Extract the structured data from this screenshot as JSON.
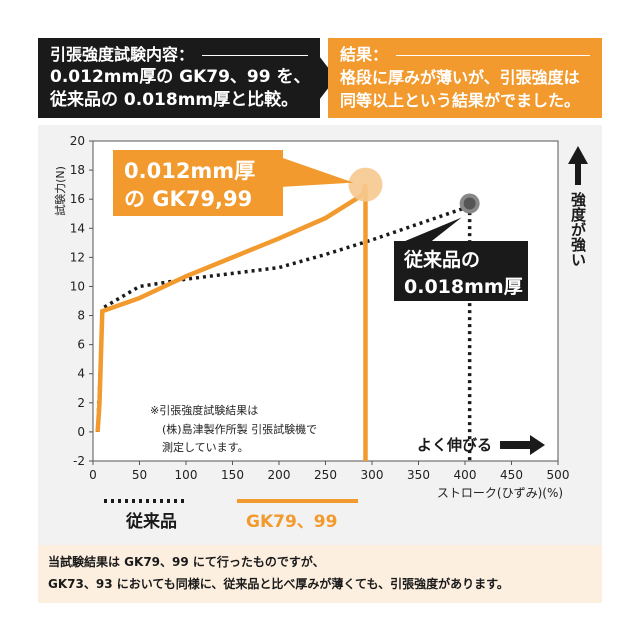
{
  "header": {
    "left_title": "引張強度試験内容：",
    "left_line1": "0.012mm厚の GK79、99 を、",
    "left_line2": "従来品の 0.018mm厚と比較。",
    "right_title": "結果：",
    "right_line1": "格段に厚みが薄いが、引張強度は",
    "right_line2": "同等以上という結果がでました。"
  },
  "chart_data": {
    "type": "line",
    "ylabel": "試験力(N)",
    "xlabel": "ストローク(ひずみ)(%)",
    "xlim": [
      0,
      500
    ],
    "ylim": [
      -2,
      20
    ],
    "xticks": [
      "0",
      "50",
      "100",
      "150",
      "200",
      "250",
      "300",
      "350",
      "400",
      "450",
      "500"
    ],
    "yticks": [
      "-2",
      "0",
      "2",
      "4",
      "6",
      "8",
      "10",
      "12",
      "14",
      "16",
      "18",
      "20"
    ],
    "grid": false,
    "series": [
      {
        "name": "GK79、99",
        "style": "solid",
        "color": "#f29a2e",
        "points": [
          [
            5,
            0
          ],
          [
            7,
            2
          ],
          [
            10,
            8.3
          ],
          [
            50,
            9.2
          ],
          [
            100,
            10.7
          ],
          [
            150,
            12
          ],
          [
            200,
            13.3
          ],
          [
            250,
            14.7
          ],
          [
            290,
            16.3
          ],
          [
            293,
            17.0
          ],
          [
            293,
            -2
          ]
        ],
        "peak": [
          293,
          17.0
        ]
      },
      {
        "name": "従来品",
        "style": "dotted",
        "color": "#1a1a1a",
        "points": [
          [
            5,
            0
          ],
          [
            7,
            3
          ],
          [
            10,
            8.5
          ],
          [
            50,
            10
          ],
          [
            100,
            10.5
          ],
          [
            150,
            10.9
          ],
          [
            200,
            11.3
          ],
          [
            250,
            12.2
          ],
          [
            300,
            13.2
          ],
          [
            350,
            14.3
          ],
          [
            400,
            15.4
          ],
          [
            405,
            15.7
          ],
          [
            405,
            -2
          ]
        ],
        "peak": [
          405,
          15.7
        ]
      }
    ],
    "callout_gk": {
      "line1": "0.012mm厚",
      "line2": "の GK79,99"
    },
    "callout_conv": {
      "line1": "従来品の",
      "line2": "0.018mm厚"
    },
    "note": {
      "line1": "※引張強度試験結果は",
      "line2": "(株)島津製作所製 引張試験機で",
      "line3": "測定しています。"
    },
    "right_label": "強度が強い",
    "bottom_label": "よく伸びる",
    "legend": {
      "conventional": "従来品",
      "gk": "GK79、99"
    }
  },
  "footer": {
    "line1": "当試験結果は GK79、99 にて行ったものですが、",
    "line2": "GK73、93 においても同様に、従来品と比べ厚みが薄くても、引張強度があります。"
  },
  "colors": {
    "orange": "#f29a2e",
    "black": "#1a1a1a",
    "plot_bg": "#f2f2f2",
    "footer_bg": "#fcefe0"
  }
}
